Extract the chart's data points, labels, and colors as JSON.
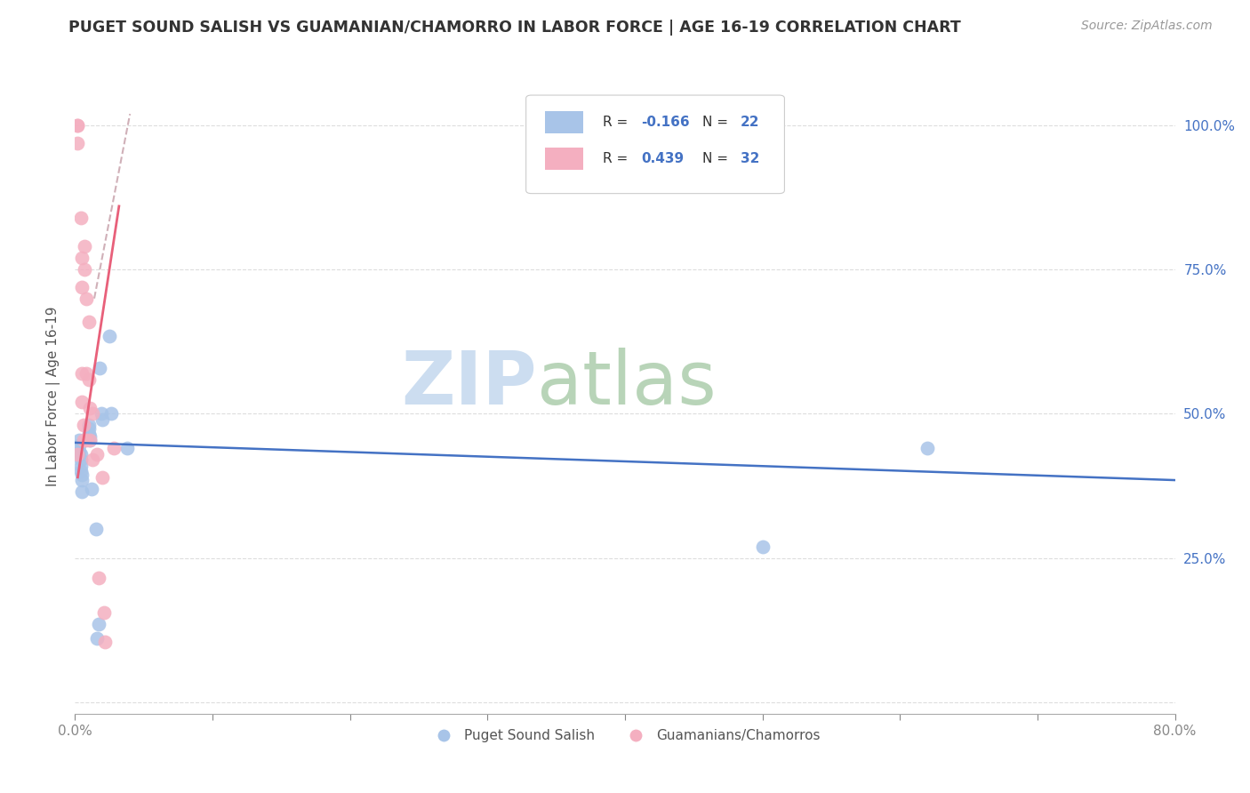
{
  "title": "PUGET SOUND SALISH VS GUAMANIAN/CHAMORRO IN LABOR FORCE | AGE 16-19 CORRELATION CHART",
  "source": "Source: ZipAtlas.com",
  "ylabel": "In Labor Force | Age 16-19",
  "xlim": [
    0.0,
    0.8
  ],
  "ylim": [
    -0.02,
    1.08
  ],
  "xticks": [
    0.0,
    0.1,
    0.2,
    0.3,
    0.4,
    0.5,
    0.6,
    0.7,
    0.8
  ],
  "xticklabels": [
    "0.0%",
    "",
    "",
    "",
    "",
    "",
    "",
    "",
    "80.0%"
  ],
  "ytick_positions": [
    0.0,
    0.25,
    0.5,
    0.75,
    1.0
  ],
  "ytick_labels_right": [
    "",
    "25.0%",
    "50.0%",
    "75.0%",
    "100.0%"
  ],
  "blue_color": "#a8c4e8",
  "pink_color": "#f4afc0",
  "line_blue": "#4472c4",
  "line_pink": "#e8607a",
  "line_dashed_color": "#d0b0b8",
  "blue_points_x": [
    0.003,
    0.003,
    0.003,
    0.004,
    0.004,
    0.004,
    0.004,
    0.005,
    0.005,
    0.005,
    0.01,
    0.01,
    0.01,
    0.011,
    0.011,
    0.012,
    0.018,
    0.019,
    0.02,
    0.025,
    0.026,
    0.038,
    0.5,
    0.62,
    0.015,
    0.016,
    0.017
  ],
  "blue_points_y": [
    0.455,
    0.445,
    0.435,
    0.43,
    0.42,
    0.41,
    0.4,
    0.395,
    0.385,
    0.365,
    0.48,
    0.475,
    0.465,
    0.46,
    0.455,
    0.37,
    0.58,
    0.5,
    0.49,
    0.635,
    0.5,
    0.44,
    0.27,
    0.44,
    0.3,
    0.11,
    0.135
  ],
  "pink_points_x": [
    0.002,
    0.002,
    0.002,
    0.002,
    0.004,
    0.005,
    0.005,
    0.005,
    0.005,
    0.006,
    0.006,
    0.007,
    0.007,
    0.008,
    0.008,
    0.008,
    0.01,
    0.01,
    0.011,
    0.011,
    0.013,
    0.013,
    0.016,
    0.017,
    0.02,
    0.021,
    0.022,
    0.028
  ],
  "pink_points_y": [
    1.0,
    1.0,
    0.97,
    0.43,
    0.84,
    0.77,
    0.72,
    0.57,
    0.52,
    0.48,
    0.455,
    0.79,
    0.75,
    0.7,
    0.57,
    0.455,
    0.66,
    0.56,
    0.51,
    0.455,
    0.5,
    0.42,
    0.43,
    0.215,
    0.39,
    0.155,
    0.105,
    0.44
  ],
  "blue_line_x": [
    0.0,
    0.8
  ],
  "blue_line_y": [
    0.45,
    0.385
  ],
  "pink_line_x": [
    0.002,
    0.032
  ],
  "pink_line_y": [
    0.39,
    0.86
  ],
  "dashed_line_x": [
    0.014,
    0.04
  ],
  "dashed_line_y": [
    0.7,
    1.02
  ]
}
